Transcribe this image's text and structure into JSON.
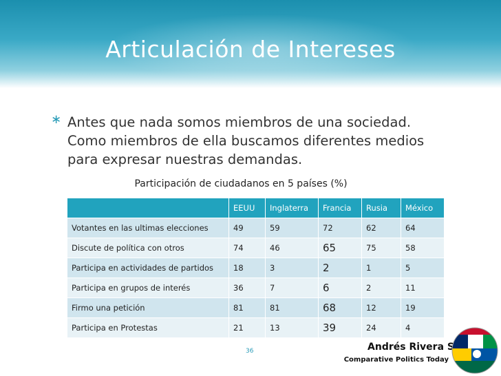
{
  "header": {
    "title": "Articulación de Intereses"
  },
  "bullet": {
    "marker": "∗",
    "text": "Antes que nada somos miembros de una sociedad. Como miembros de ella buscamos diferentes medios para expresar nuestras demandas."
  },
  "table": {
    "caption": "Participación de ciudadanos en 5 países (%)",
    "columns": [
      "EEUU",
      "Inglaterra",
      "Francia",
      "Rusia",
      "México"
    ],
    "rows": [
      [
        "Votantes en las ultimas elecciones",
        "49",
        "59",
        "72",
        "62",
        "64"
      ],
      [
        "Discute de política con otros",
        "74",
        "46",
        "65",
        "75",
        "58"
      ],
      [
        "Participa en actividades de partidos",
        "18",
        "3",
        "2",
        "1",
        "5"
      ],
      [
        "Participa en grupos de interés",
        "36",
        "7",
        "6",
        "2",
        "11"
      ],
      [
        "Firmo una petición",
        "81",
        "81",
        "68",
        "12",
        "19"
      ],
      [
        "Participa en Protestas",
        "21",
        "13",
        "39",
        "24",
        "4"
      ]
    ]
  },
  "footer": {
    "page_number": "36",
    "author": "Andrés Rivera S",
    "book": "Comparative Politics Today"
  }
}
